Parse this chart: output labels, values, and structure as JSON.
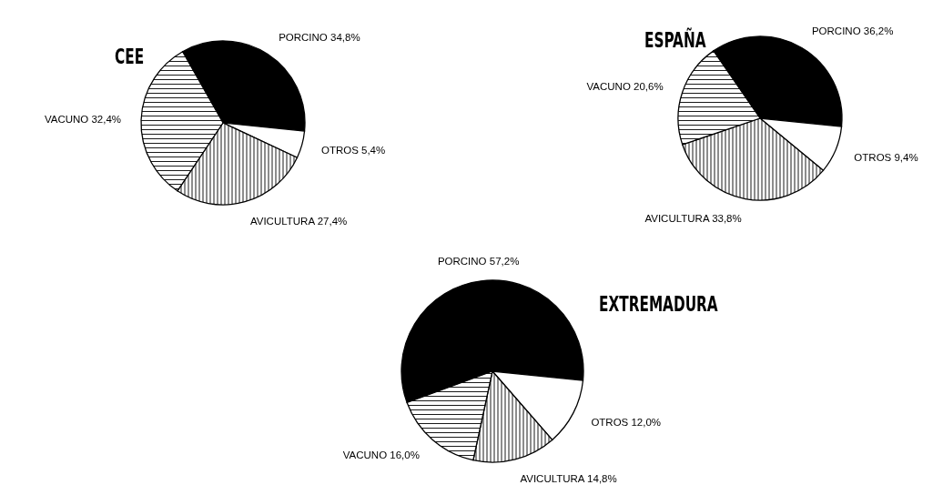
{
  "chart_data": [
    {
      "type": "pie",
      "title": "CEE",
      "categories": [
        "PORCINO",
        "OTROS",
        "AVICULTURA",
        "VACUNO"
      ],
      "values": [
        34.8,
        5.4,
        27.4,
        32.4
      ],
      "value_labels": [
        "34,8%",
        "5,4%",
        "27,4%",
        "32,4%"
      ],
      "colors": [
        "#000000",
        "#ffffff",
        "#ffffff",
        "#ffffff"
      ]
    },
    {
      "type": "pie",
      "title": "ESPAÑA",
      "categories": [
        "PORCINO",
        "OTROS",
        "AVICULTURA",
        "VACUNO"
      ],
      "values": [
        36.2,
        9.4,
        33.8,
        20.6
      ],
      "value_labels": [
        "36,2%",
        "9,4%",
        "33,8%",
        "20,6%"
      ],
      "colors": [
        "#000000",
        "#ffffff",
        "#ffffff",
        "#ffffff"
      ]
    },
    {
      "type": "pie",
      "title": "EXTREMADURA",
      "categories": [
        "PORCINO",
        "OTROS",
        "AVICULTURA",
        "VACUNO"
      ],
      "values": [
        57.2,
        12.0,
        14.8,
        16.0
      ],
      "value_labels": [
        "57,2%",
        "12,0%",
        "14,8%",
        "16,0%"
      ],
      "colors": [
        "#000000",
        "#ffffff",
        "#ffffff",
        "#ffffff"
      ]
    }
  ]
}
